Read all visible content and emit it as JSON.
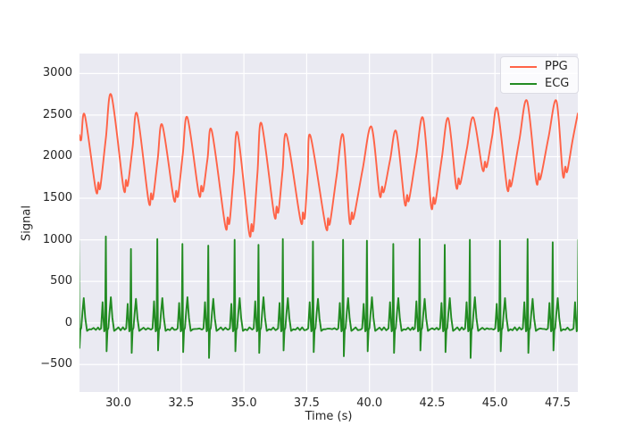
{
  "figure": {
    "background": "#ffffff",
    "plot_background": "#eaeaf2",
    "grid_color": "#ffffff",
    "text_color": "#262626"
  },
  "chart_data": {
    "type": "line",
    "title": "",
    "xlabel": "Time (s)",
    "ylabel": "Signal",
    "xlim": [
      28.45,
      48.3
    ],
    "ylim": [
      -830,
      3240
    ],
    "grid": true,
    "legend_position": "upper right",
    "xticks": [
      {
        "v": 30.0,
        "label": "30.0"
      },
      {
        "v": 32.5,
        "label": "32.5"
      },
      {
        "v": 35.0,
        "label": "35.0"
      },
      {
        "v": 37.5,
        "label": "37.5"
      },
      {
        "v": 40.0,
        "label": "40.0"
      },
      {
        "v": 42.5,
        "label": "42.5"
      },
      {
        "v": 45.0,
        "label": "45.0"
      },
      {
        "v": 47.5,
        "label": "47.5"
      }
    ],
    "yticks": [
      {
        "v": -500,
        "label": "−500"
      },
      {
        "v": 0,
        "label": "0"
      },
      {
        "v": 500,
        "label": "500"
      },
      {
        "v": 1000,
        "label": "1000"
      },
      {
        "v": 1500,
        "label": "1500"
      },
      {
        "v": 2000,
        "label": "2000"
      },
      {
        "v": 2500,
        "label": "2500"
      },
      {
        "v": 3000,
        "label": "3000"
      }
    ],
    "series": [
      {
        "name": "PPG",
        "color": "#ff6347",
        "waveform": "ppg",
        "line_width": 1.9,
        "start": [
          28.45,
          2260
        ],
        "beats": [
          {
            "t_peak": 28.66,
            "peak": 2500,
            "t_trough": 29.1,
            "trough": 1600
          },
          {
            "t_peak": 29.72,
            "peak": 2740,
            "t_trough": 30.2,
            "trough": 1630
          },
          {
            "t_peak": 30.75,
            "peak": 2510,
            "t_trough": 31.2,
            "trough": 1470
          },
          {
            "t_peak": 31.75,
            "peak": 2380,
            "t_trough": 32.2,
            "trough": 1500
          },
          {
            "t_peak": 32.75,
            "peak": 2470,
            "t_trough": 33.2,
            "trough": 1560
          },
          {
            "t_peak": 33.72,
            "peak": 2310,
            "t_trough": 34.25,
            "trough": 1180
          },
          {
            "t_peak": 34.75,
            "peak": 2280,
            "t_trough": 35.2,
            "trough": 1100
          },
          {
            "t_peak": 35.7,
            "peak": 2400,
            "t_trough": 36.2,
            "trough": 1310
          },
          {
            "t_peak": 36.7,
            "peak": 2260,
            "t_trough": 37.25,
            "trough": 1240
          },
          {
            "t_peak": 37.65,
            "peak": 2250,
            "t_trough": 38.25,
            "trough": 1170
          },
          {
            "t_peak": 38.95,
            "peak": 2260,
            "t_trough": 39.2,
            "trough": 1240
          },
          {
            "t_peak": 40.08,
            "peak": 2360,
            "t_trough": 40.4,
            "trough": 1550
          },
          {
            "t_peak": 41.07,
            "peak": 2300,
            "t_trough": 41.4,
            "trough": 1450
          },
          {
            "t_peak": 42.14,
            "peak": 2460,
            "t_trough": 42.45,
            "trough": 1420
          },
          {
            "t_peak": 43.14,
            "peak": 2460,
            "t_trough": 43.45,
            "trough": 1650
          },
          {
            "t_peak": 44.14,
            "peak": 2470,
            "t_trough": 44.5,
            "trough": 1850
          },
          {
            "t_peak": 45.1,
            "peak": 2570,
            "t_trough": 45.48,
            "trough": 1630
          },
          {
            "t_peak": 46.28,
            "peak": 2670,
            "t_trough": 46.64,
            "trough": 1710
          },
          {
            "t_peak": 47.45,
            "peak": 2670,
            "t_trough": 47.7,
            "trough": 1790
          },
          {
            "t_peak": 48.3,
            "peak": 2520
          }
        ]
      },
      {
        "name": "ECG",
        "color": "#228b22",
        "waveform": "ecg",
        "line_width": 1.9,
        "baseline": -70,
        "beats": [
          {
            "t": 28.42,
            "r": 1000,
            "s": -300,
            "p": 240,
            "tw": 300
          },
          {
            "t": 29.5,
            "r": 1040,
            "s": -340,
            "p": 250,
            "tw": 310
          },
          {
            "t": 30.5,
            "r": 890,
            "s": -360,
            "p": 230,
            "tw": 290
          },
          {
            "t": 31.55,
            "r": 1010,
            "s": -330,
            "p": 260,
            "tw": 300
          },
          {
            "t": 32.55,
            "r": 950,
            "s": -350,
            "p": 240,
            "tw": 310
          },
          {
            "t": 33.58,
            "r": 930,
            "s": -420,
            "p": 250,
            "tw": 290
          },
          {
            "t": 34.63,
            "r": 1000,
            "s": -340,
            "p": 230,
            "tw": 300
          },
          {
            "t": 35.58,
            "r": 940,
            "s": -360,
            "p": 260,
            "tw": 310
          },
          {
            "t": 36.55,
            "r": 1010,
            "s": -330,
            "p": 240,
            "tw": 300
          },
          {
            "t": 37.75,
            "r": 980,
            "s": -350,
            "p": 250,
            "tw": 290
          },
          {
            "t": 38.95,
            "r": 1000,
            "s": -400,
            "p": 240,
            "tw": 300
          },
          {
            "t": 39.9,
            "r": 990,
            "s": -340,
            "p": 230,
            "tw": 310
          },
          {
            "t": 40.95,
            "r": 950,
            "s": -360,
            "p": 250,
            "tw": 300
          },
          {
            "t": 42.0,
            "r": 1010,
            "s": -330,
            "p": 260,
            "tw": 290
          },
          {
            "t": 43.0,
            "r": 940,
            "s": -350,
            "p": 240,
            "tw": 300
          },
          {
            "t": 44.0,
            "r": 1000,
            "s": -420,
            "p": 250,
            "tw": 310
          },
          {
            "t": 45.2,
            "r": 990,
            "s": -340,
            "p": 230,
            "tw": 300
          },
          {
            "t": 46.3,
            "r": 1010,
            "s": -360,
            "p": 250,
            "tw": 290
          },
          {
            "t": 47.3,
            "r": 970,
            "s": -330,
            "p": 240,
            "tw": 300
          },
          {
            "t": 48.32,
            "r": 1000,
            "s": -350,
            "p": 250,
            "tw": 300
          }
        ]
      }
    ]
  }
}
